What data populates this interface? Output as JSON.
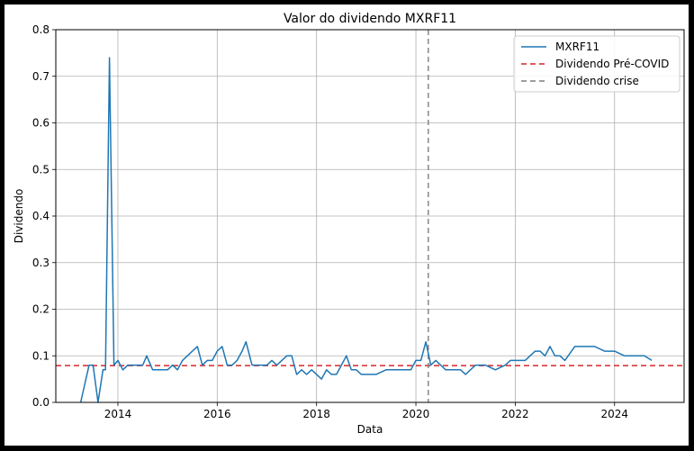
{
  "chart_data": {
    "type": "line",
    "title": "Valor do dividendo MXRF11",
    "xlabel": "Data",
    "ylabel": "Dividendo",
    "xlim": [
      2012.75,
      2025.4
    ],
    "ylim": [
      0.0,
      0.8
    ],
    "x_ticks": [
      2014,
      2016,
      2018,
      2020,
      2022,
      2024
    ],
    "x_tick_labels": [
      "2014",
      "2016",
      "2018",
      "2020",
      "2022",
      "2024"
    ],
    "y_ticks": [
      0.0,
      0.1,
      0.2,
      0.3,
      0.4,
      0.5,
      0.6,
      0.7,
      0.8
    ],
    "y_tick_labels": [
      "0.0",
      "0.1",
      "0.2",
      "0.3",
      "0.4",
      "0.5",
      "0.6",
      "0.7",
      "0.8"
    ],
    "grid": true,
    "legend_position": "top-right",
    "series": [
      {
        "name": "MXRF11",
        "color": "#1f77b4",
        "style": "solid",
        "x": [
          2013.25,
          2013.42,
          2013.5,
          2013.6,
          2013.7,
          2013.75,
          2013.83,
          2013.92,
          2014.0,
          2014.1,
          2014.2,
          2014.3,
          2014.4,
          2014.5,
          2014.58,
          2014.7,
          2014.8,
          2014.9,
          2015.0,
          2015.1,
          2015.2,
          2015.3,
          2015.4,
          2015.5,
          2015.6,
          2015.7,
          2015.8,
          2015.9,
          2016.0,
          2016.1,
          2016.2,
          2016.3,
          2016.4,
          2016.5,
          2016.58,
          2016.7,
          2016.8,
          2016.9,
          2017.0,
          2017.1,
          2017.2,
          2017.3,
          2017.4,
          2017.5,
          2017.6,
          2017.7,
          2017.8,
          2017.9,
          2018.0,
          2018.1,
          2018.2,
          2018.3,
          2018.4,
          2018.5,
          2018.6,
          2018.7,
          2018.8,
          2018.9,
          2019.0,
          2019.2,
          2019.4,
          2019.6,
          2019.8,
          2019.9,
          2020.0,
          2020.1,
          2020.2,
          2020.3,
          2020.4,
          2020.6,
          2020.8,
          2020.9,
          2021.0,
          2021.2,
          2021.4,
          2021.6,
          2021.8,
          2021.9,
          2022.0,
          2022.2,
          2022.4,
          2022.5,
          2022.6,
          2022.7,
          2022.8,
          2022.9,
          2023.0,
          2023.2,
          2023.4,
          2023.6,
          2023.8,
          2024.0,
          2024.2,
          2024.4,
          2024.6,
          2024.75
        ],
        "y": [
          0.0,
          0.08,
          0.08,
          0.0,
          0.07,
          0.07,
          0.74,
          0.08,
          0.09,
          0.07,
          0.08,
          0.08,
          0.08,
          0.08,
          0.1,
          0.07,
          0.07,
          0.07,
          0.07,
          0.08,
          0.07,
          0.09,
          0.1,
          0.11,
          0.12,
          0.08,
          0.09,
          0.09,
          0.11,
          0.12,
          0.08,
          0.08,
          0.09,
          0.11,
          0.13,
          0.08,
          0.08,
          0.08,
          0.08,
          0.09,
          0.08,
          0.09,
          0.1,
          0.1,
          0.06,
          0.07,
          0.06,
          0.07,
          0.06,
          0.05,
          0.07,
          0.06,
          0.06,
          0.08,
          0.1,
          0.07,
          0.07,
          0.06,
          0.06,
          0.06,
          0.07,
          0.07,
          0.07,
          0.07,
          0.09,
          0.09,
          0.13,
          0.08,
          0.09,
          0.07,
          0.07,
          0.07,
          0.06,
          0.08,
          0.08,
          0.07,
          0.08,
          0.09,
          0.09,
          0.09,
          0.11,
          0.11,
          0.1,
          0.12,
          0.1,
          0.1,
          0.09,
          0.12,
          0.12,
          0.12,
          0.11,
          0.11,
          0.1,
          0.1,
          0.1,
          0.09
        ]
      },
      {
        "name": "Dividendo Pré-COVID",
        "color": "#d62728",
        "style": "dashed",
        "orientation": "horizontal",
        "value": 0.079
      },
      {
        "name": "Dividendo crise",
        "color": "#7f7f7f",
        "style": "dashed",
        "orientation": "vertical",
        "value": 2020.25
      }
    ]
  }
}
